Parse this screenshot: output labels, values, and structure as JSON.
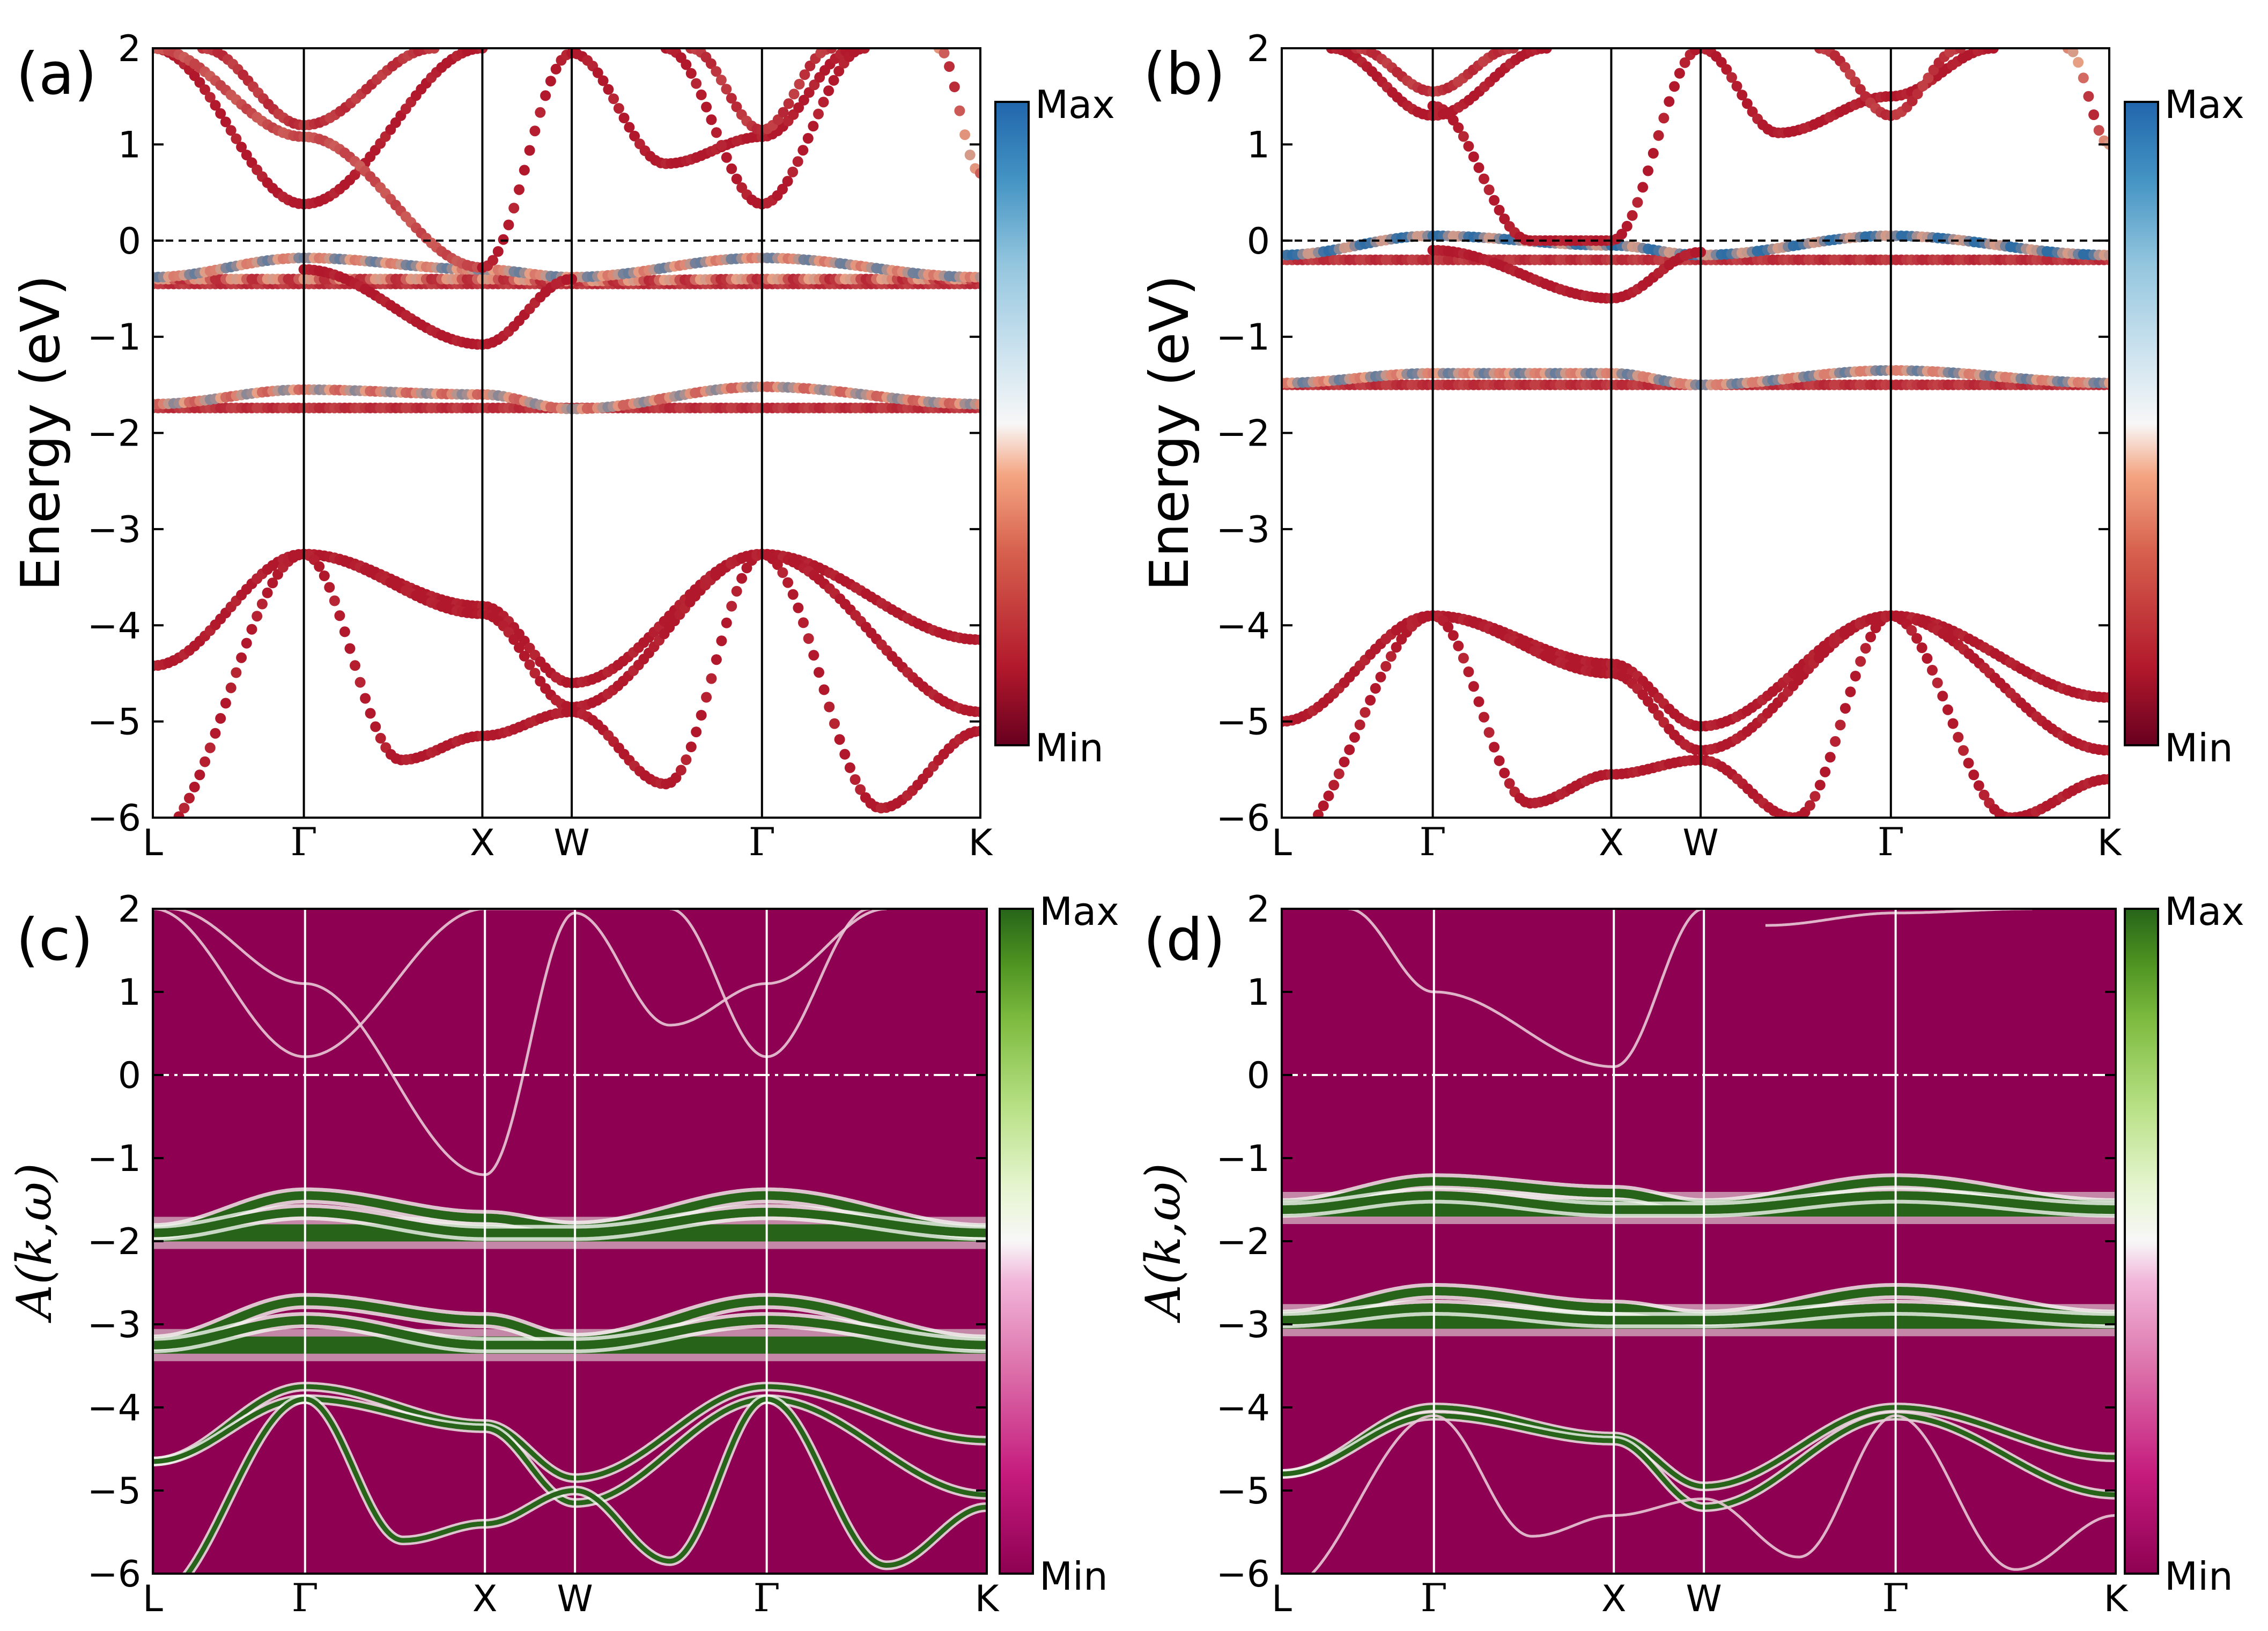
{
  "colors": {
    "band_red": "#b2182b",
    "band_light": "#e7a085",
    "band_blue": "#2f6ea5",
    "spectral_bg": "#8e0152",
    "spectral_green": "#276419",
    "spectral_light": "#f2f5ef"
  },
  "chart_data": [
    {
      "panel": "(a)",
      "type": "scatter",
      "ylabel": "Energy (eV)",
      "ylim": [
        -6,
        2
      ],
      "yticks": [
        "2",
        "1",
        "0",
        "−1",
        "−2",
        "−3",
        "−4",
        "−5",
        "−6"
      ],
      "kpoints": [
        "L",
        "Γ",
        "X",
        "W",
        "Γ",
        "K"
      ],
      "kpos": [
        0,
        0.1825,
        0.3982,
        0.5062,
        0.7361,
        1.0
      ],
      "fermi_level": 0,
      "colorbar": {
        "max_label": "Max",
        "min_label": "Min",
        "cmap": "RdBu"
      },
      "bands": [
        {
          "x": [
            0,
            0.1825,
            0.3982,
            0.5062,
            0.7361,
            1.0
          ],
          "y": [
            -4.42,
            -3.26,
            -3.8,
            -4.6,
            -3.26,
            -4.15
          ],
          "w": 0
        },
        {
          "x": [
            0,
            0.1825,
            0.3982,
            0.5062,
            0.7361,
            1.0
          ],
          "y": [
            -4.42,
            -3.26,
            -3.88,
            -4.85,
            -3.26,
            -4.9
          ],
          "w": 0
        },
        {
          "x": [
            0,
            0.1825,
            0.3,
            0.3982,
            0.5062,
            0.62,
            0.7361,
            0.88,
            1.0
          ],
          "y": [
            -6.2,
            -3.26,
            -5.4,
            -5.15,
            -4.9,
            -5.65,
            -3.26,
            -5.9,
            -5.1
          ],
          "w": 0
        },
        {
          "x": [
            0,
            0.1825,
            0.3982,
            0.5062,
            0.7361,
            1.0
          ],
          "y": [
            -1.74,
            -1.74,
            -1.74,
            -1.74,
            -1.74,
            -1.74
          ],
          "w": 0.1
        },
        {
          "x": [
            0,
            0.1825,
            0.3982,
            0.5062,
            0.7361,
            1.0
          ],
          "y": [
            -1.7,
            -1.55,
            -1.6,
            -1.75,
            -1.52,
            -1.7
          ],
          "w": 0.5
        },
        {
          "x": [
            0,
            0.1825,
            0.3982,
            0.5062,
            0.7361,
            1.0
          ],
          "y": [
            -0.45,
            -0.45,
            -0.45,
            -0.45,
            -0.45,
            -0.45
          ],
          "w": 0.1
        },
        {
          "x": [
            0,
            0.1825,
            0.3982,
            0.5062,
            0.7361,
            1.0
          ],
          "y": [
            -0.4,
            -0.4,
            -0.4,
            -0.42,
            -0.4,
            -0.4
          ],
          "w": 0.3
        },
        {
          "x": [
            0,
            0.1825,
            0.3982,
            0.5062,
            0.7361,
            1.0
          ],
          "y": [
            -0.38,
            -0.18,
            -0.3,
            -0.38,
            -0.18,
            -0.38
          ],
          "w": 0.6
        },
        {
          "x": [
            0.1825,
            0.3982,
            0.5062
          ],
          "y": [
            -0.3,
            -1.08,
            -0.4
          ],
          "w": 0
        },
        {
          "x": [
            0,
            0.1825,
            0.3982
          ],
          "y": [
            2.0,
            0.38,
            2.0
          ],
          "w": 0
        },
        {
          "x": [
            0,
            0.1825,
            0.3982
          ],
          "y": [
            2.0,
            1.08,
            -0.28
          ],
          "w": 0.2
        },
        {
          "x": [
            0.06,
            0.1825,
            0.34
          ],
          "y": [
            2.0,
            1.2,
            2.0
          ],
          "w": 0.1
        },
        {
          "x": [
            0.3982,
            0.5062,
            0.62,
            0.7361,
            0.85
          ],
          "y": [
            -0.28,
            1.95,
            0.8,
            1.08,
            2.0
          ],
          "w": 0
        },
        {
          "x": [
            0.62,
            0.7361,
            0.86
          ],
          "y": [
            2.0,
            0.38,
            2.0
          ],
          "w": 0
        },
        {
          "x": [
            0.65,
            0.7361,
            0.82
          ],
          "y": [
            2.0,
            1.15,
            2.0
          ],
          "w": 0.1
        },
        {
          "x": [
            0.95,
            1.0
          ],
          "y": [
            2.0,
            0.7
          ],
          "w": 0.3
        }
      ]
    },
    {
      "panel": "(b)",
      "type": "scatter",
      "ylabel": "Energy (eV)",
      "ylim": [
        -6,
        2
      ],
      "yticks": [
        "2",
        "1",
        "0",
        "−1",
        "−2",
        "−3",
        "−4",
        "−5",
        "−6"
      ],
      "kpoints": [
        "L",
        "Γ",
        "X",
        "W",
        "Γ",
        "K"
      ],
      "kpos": [
        0,
        0.1825,
        0.3982,
        0.5062,
        0.7361,
        1.0
      ],
      "fermi_level": 0,
      "colorbar": {
        "max_label": "Max",
        "min_label": "Min",
        "cmap": "RdBu"
      },
      "bands": [
        {
          "x": [
            0,
            0.1825,
            0.3982,
            0.5062,
            0.7361,
            1.0
          ],
          "y": [
            -5.0,
            -3.9,
            -4.4,
            -5.05,
            -3.9,
            -4.75
          ],
          "w": 0
        },
        {
          "x": [
            0,
            0.1825,
            0.3982,
            0.5062,
            0.7361,
            1.0
          ],
          "y": [
            -5.0,
            -3.9,
            -4.5,
            -5.3,
            -3.9,
            -5.3
          ],
          "w": 0
        },
        {
          "x": [
            0,
            0.1825,
            0.3,
            0.3982,
            0.5062,
            0.62,
            0.7361,
            0.88,
            1.0
          ],
          "y": [
            -6.3,
            -3.9,
            -5.85,
            -5.55,
            -5.4,
            -6.0,
            -3.9,
            -6.0,
            -5.6
          ],
          "w": 0
        },
        {
          "x": [
            0,
            0.1825,
            0.3982,
            0.5062,
            0.7361,
            1.0
          ],
          "y": [
            -1.5,
            -1.5,
            -1.5,
            -1.5,
            -1.5,
            -1.5
          ],
          "w": 0.1
        },
        {
          "x": [
            0,
            0.1825,
            0.3982,
            0.5062,
            0.7361,
            1.0
          ],
          "y": [
            -1.48,
            -1.38,
            -1.38,
            -1.5,
            -1.35,
            -1.48
          ],
          "w": 0.6
        },
        {
          "x": [
            0,
            0.1825,
            0.3982,
            0.5062,
            0.7361,
            1.0
          ],
          "y": [
            -0.2,
            -0.2,
            -0.2,
            -0.2,
            -0.2,
            -0.2
          ],
          "w": 0.1
        },
        {
          "x": [
            0,
            0.1825,
            0.3982,
            0.5062,
            0.7361,
            1.0
          ],
          "y": [
            -0.15,
            0.05,
            -0.05,
            -0.15,
            0.05,
            -0.15
          ],
          "w": 0.8
        },
        {
          "x": [
            0.1825,
            0.3982,
            0.5062
          ],
          "y": [
            -0.1,
            -0.6,
            -0.12
          ],
          "w": 0
        },
        {
          "x": [
            0.1825,
            0.3,
            0.3982,
            0.5062
          ],
          "y": [
            1.4,
            0.0,
            0.0,
            2.0
          ],
          "w": 0
        },
        {
          "x": [
            0.06,
            0.1825,
            0.32
          ],
          "y": [
            2.0,
            1.3,
            2.0
          ],
          "w": 0
        },
        {
          "x": [
            0.09,
            0.1825,
            0.28
          ],
          "y": [
            2.0,
            1.55,
            2.0
          ],
          "w": 0.1
        },
        {
          "x": [
            0.5062,
            0.6,
            0.7361,
            0.86
          ],
          "y": [
            2.0,
            1.12,
            1.5,
            2.0
          ],
          "w": 0
        },
        {
          "x": [
            0.65,
            0.7361,
            0.82
          ],
          "y": [
            2.0,
            1.3,
            2.0
          ],
          "w": 0.1
        },
        {
          "x": [
            0.95,
            1.0
          ],
          "y": [
            2.0,
            1.0
          ],
          "w": 0.3
        }
      ]
    },
    {
      "panel": "(c)",
      "type": "heatmap",
      "ylabel": "A(k,ω)",
      "ylim": [
        -6,
        2
      ],
      "yticks": [
        "2",
        "1",
        "0",
        "−1",
        "−2",
        "−3",
        "−4",
        "−5",
        "−6"
      ],
      "kpoints": [
        "L",
        "Γ",
        "X",
        "W",
        "Γ",
        "K"
      ],
      "kpos": [
        0,
        0.1825,
        0.3982,
        0.5062,
        0.7361,
        1.0
      ],
      "fermi_level": 0,
      "colorbar": {
        "max_label": "Max",
        "min_label": "Min",
        "cmap": "PiYG"
      },
      "flat_bands": [
        -1.9,
        -3.25
      ],
      "bands": [
        {
          "x": [
            0,
            0.1825,
            0.3982,
            0.5062,
            0.7361,
            1.0
          ],
          "y": [
            -1.88,
            -1.45,
            -1.72,
            -1.85,
            -1.45,
            -1.88
          ],
          "thick": 1
        },
        {
          "x": [
            0,
            0.1825,
            0.3982,
            0.5062,
            0.7361,
            1.0
          ],
          "y": [
            -1.9,
            -1.65,
            -1.9,
            -1.9,
            -1.65,
            -1.9
          ],
          "thick": 1
        },
        {
          "x": [
            0,
            0.1825,
            0.3982,
            0.5062,
            0.7361,
            1.0
          ],
          "y": [
            -3.22,
            -2.72,
            -2.95,
            -3.2,
            -2.72,
            -3.22
          ],
          "thick": 1
        },
        {
          "x": [
            0,
            0.1825,
            0.3982,
            0.5062,
            0.7361,
            1.0
          ],
          "y": [
            -3.25,
            -2.95,
            -3.25,
            -3.25,
            -2.95,
            -3.25
          ],
          "thick": 1
        },
        {
          "x": [
            0,
            0.1825,
            0.3982,
            0.5062,
            0.7361,
            1.0
          ],
          "y": [
            -4.65,
            -3.75,
            -4.2,
            -4.85,
            -3.75,
            -4.4
          ],
          "thick": 0
        },
        {
          "x": [
            0,
            0.1825,
            0.3982,
            0.5062,
            0.7361,
            1.0
          ],
          "y": [
            -4.65,
            -3.9,
            -4.25,
            -5.15,
            -3.9,
            -5.05
          ],
          "thick": 0
        },
        {
          "x": [
            0,
            0.1825,
            0.3,
            0.3982,
            0.5062,
            0.62,
            0.7361,
            0.88,
            1.0
          ],
          "y": [
            -6.3,
            -3.9,
            -5.6,
            -5.4,
            -5.0,
            -5.85,
            -3.9,
            -5.9,
            -5.2
          ],
          "thick": 0
        },
        {
          "x": [
            0,
            0.1825,
            0.3982,
            0.5062
          ],
          "y": [
            2.0,
            0.22,
            2.0,
            2.0
          ],
          "thin": 1
        },
        {
          "x": [
            0.02,
            0.1825,
            0.3982
          ],
          "y": [
            2.0,
            1.1,
            -1.2
          ],
          "thin": 1
        },
        {
          "x": [
            0.3982,
            0.5062,
            0.62,
            0.7361,
            0.88
          ],
          "y": [
            -1.2,
            1.95,
            0.6,
            1.1,
            2.0
          ],
          "thin": 1
        },
        {
          "x": [
            0.62,
            0.7361,
            0.86
          ],
          "y": [
            2.0,
            0.22,
            2.0
          ],
          "thin": 1
        }
      ]
    },
    {
      "panel": "(d)",
      "type": "heatmap",
      "ylabel": "A(k,ω)",
      "ylim": [
        -6,
        2
      ],
      "yticks": [
        "2",
        "1",
        "0",
        "−1",
        "−2",
        "−3",
        "−4",
        "−5",
        "−6"
      ],
      "kpoints": [
        "L",
        "Γ",
        "X",
        "W",
        "Γ",
        "K"
      ],
      "kpos": [
        0,
        0.1825,
        0.3982,
        0.5062,
        0.7361,
        1.0
      ],
      "fermi_level": 0,
      "colorbar": {
        "max_label": "Max",
        "min_label": "Min",
        "cmap": "PiYG"
      },
      "flat_bands": [
        -1.6,
        -2.95
      ],
      "bands": [
        {
          "x": [
            0,
            0.1825,
            0.3982,
            0.5062,
            0.7361,
            1.0
          ],
          "y": [
            -1.58,
            -1.28,
            -1.42,
            -1.58,
            -1.28,
            -1.58
          ],
          "thick": 1
        },
        {
          "x": [
            0,
            0.1825,
            0.3982,
            0.5062,
            0.7361,
            1.0
          ],
          "y": [
            -1.62,
            -1.45,
            -1.62,
            -1.62,
            -1.45,
            -1.62
          ],
          "thick": 1
        },
        {
          "x": [
            0,
            0.1825,
            0.3982,
            0.5062,
            0.7361,
            1.0
          ],
          "y": [
            -2.92,
            -2.6,
            -2.8,
            -2.92,
            -2.6,
            -2.92
          ],
          "thick": 1
        },
        {
          "x": [
            0,
            0.1825,
            0.3982,
            0.5062,
            0.7361,
            1.0
          ],
          "y": [
            -2.95,
            -2.8,
            -2.95,
            -2.95,
            -2.8,
            -2.95
          ],
          "thick": 1
        },
        {
          "x": [
            0,
            0.1825,
            0.3982,
            0.5062,
            0.7361,
            1.0
          ],
          "y": [
            -4.8,
            -4.0,
            -4.35,
            -4.95,
            -4.0,
            -4.6
          ],
          "thick": 0
        },
        {
          "x": [
            0,
            0.1825,
            0.3982,
            0.5062,
            0.7361,
            1.0
          ],
          "y": [
            -4.8,
            -4.1,
            -4.4,
            -5.2,
            -4.1,
            -5.05
          ],
          "thick": 0
        },
        {
          "x": [
            0,
            0.1825,
            0.3,
            0.3982,
            0.5062,
            0.62,
            0.7361,
            0.88,
            1.0
          ],
          "y": [
            -6.2,
            -4.1,
            -5.55,
            -5.3,
            -5.1,
            -5.8,
            -4.1,
            -5.95,
            -5.3
          ],
          "thin": 1
        },
        {
          "x": [
            0.08,
            0.1825,
            0.3982,
            0.5062
          ],
          "y": [
            2.0,
            1.0,
            0.1,
            2.0
          ],
          "thin": 1
        },
        {
          "x": [
            0.58,
            0.7361,
            0.9
          ],
          "y": [
            1.8,
            1.95,
            2.0
          ],
          "thin": 1
        }
      ]
    }
  ]
}
